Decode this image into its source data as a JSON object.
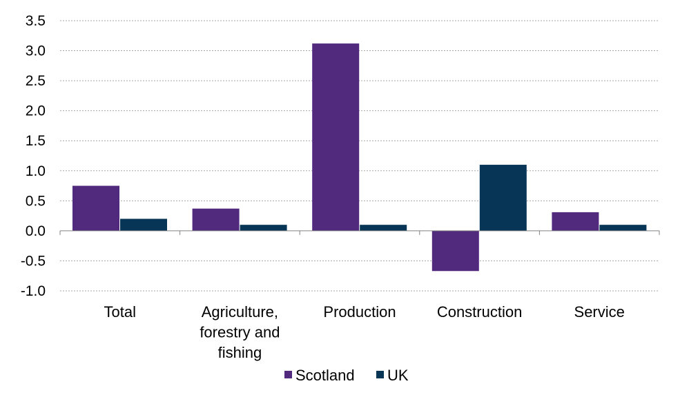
{
  "chart_data": {
    "type": "bar",
    "categories": [
      [
        "Total"
      ],
      [
        "Agriculture,",
        "forestry and",
        "fishing"
      ],
      [
        "Production"
      ],
      [
        "Construction"
      ],
      [
        "Service"
      ]
    ],
    "series": [
      {
        "name": "Scotland",
        "color": "#512a7e",
        "values": [
          0.75,
          0.37,
          3.12,
          -0.67,
          0.31
        ]
      },
      {
        "name": "UK",
        "color": "#063556",
        "values": [
          0.2,
          0.1,
          0.1,
          1.1,
          0.1
        ]
      }
    ],
    "y_ticks": [
      "3.5",
      "3.0",
      "2.5",
      "2.0",
      "1.5",
      "1.0",
      "0.5",
      "0.0",
      "-0.5",
      "-1.0"
    ],
    "ylim": [
      -1.0,
      3.5
    ],
    "ytick_step": 0.5,
    "grid": true,
    "legend_position": "bottom",
    "title": "",
    "xlabel": "",
    "ylabel": ""
  }
}
